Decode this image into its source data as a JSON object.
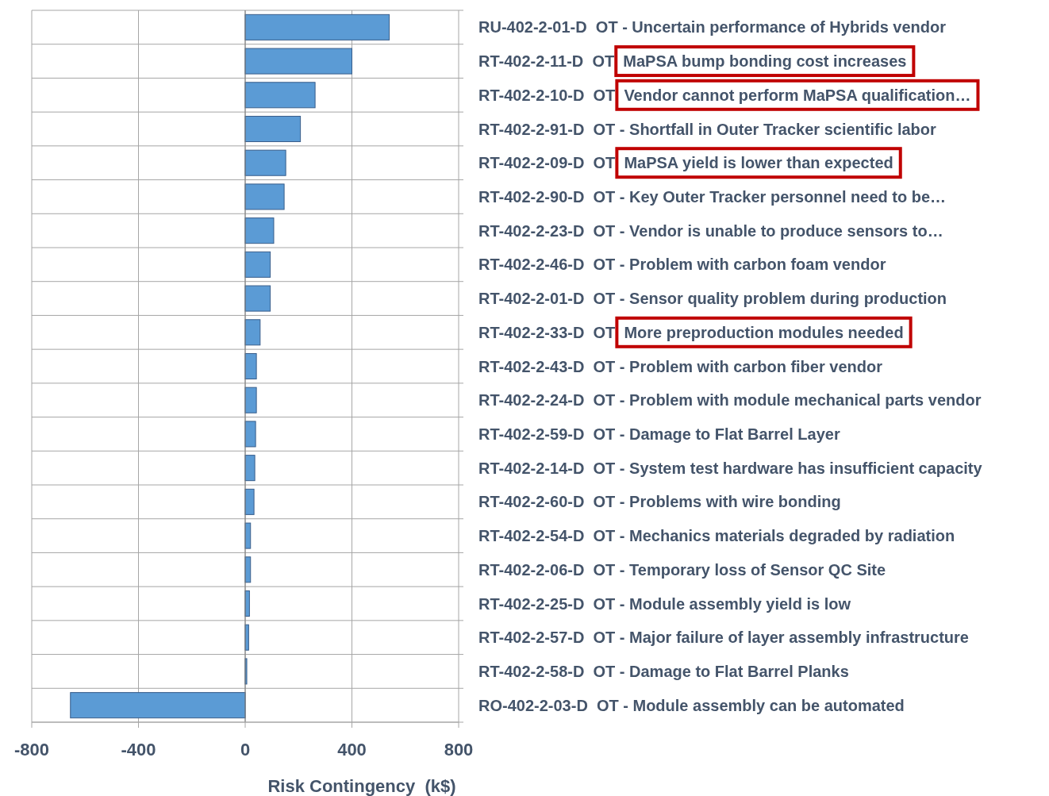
{
  "chart_data": {
    "type": "bar",
    "orientation": "horizontal",
    "xlabel": "Risk Contingency  (k$)",
    "categories": [
      "RU-402-2-01-D  OT - Uncertain performance of Hybrids vendor",
      "RT-402-2-11-D  OT  MaPSA bump bonding cost increases",
      "RT-402-2-10-D  OT  Vendor cannot perform MaPSA qualification…",
      "RT-402-2-91-D  OT - Shortfall in Outer Tracker scientific labor",
      "RT-402-2-09-D  OT  MaPSA yield is lower than expected",
      "RT-402-2-90-D  OT - Key Outer Tracker personnel need to be…",
      "RT-402-2-23-D  OT - Vendor is unable to produce sensors to…",
      "RT-402-2-46-D  OT - Problem with carbon foam vendor",
      "RT-402-2-01-D  OT - Sensor quality problem during production",
      "RT-402-2-33-D  OT  More preproduction modules needed",
      "RT-402-2-43-D  OT - Problem with carbon fiber vendor",
      "RT-402-2-24-D  OT - Problem with module mechanical parts vendor",
      "RT-402-2-59-D  OT - Damage to Flat Barrel Layer",
      "RT-402-2-14-D  OT - System test hardware has insufficient capacity",
      "RT-402-2-60-D  OT - Problems with wire bonding",
      "RT-402-2-54-D  OT - Mechanics materials degraded by radiation",
      "RT-402-2-06-D  OT - Temporary loss of Sensor QC Site",
      "RT-402-2-25-D  OT - Module assembly yield is low",
      "RT-402-2-57-D  OT - Major failure of layer assembly infrastructure",
      "RT-402-2-58-D  OT - Damage to Flat Barrel Planks",
      "RO-402-2-03-D  OT - Module assembly can be automated"
    ],
    "values": [
      540,
      400,
      262,
      207,
      152,
      146,
      107,
      94,
      94,
      56,
      42,
      42,
      39,
      36,
      33,
      20,
      20,
      16,
      13,
      6,
      -655
    ],
    "color": "#5b9bd5",
    "xlim": [
      -800,
      800
    ],
    "xticks": [
      -800,
      -400,
      0,
      400,
      800
    ],
    "grid": true
  }
}
